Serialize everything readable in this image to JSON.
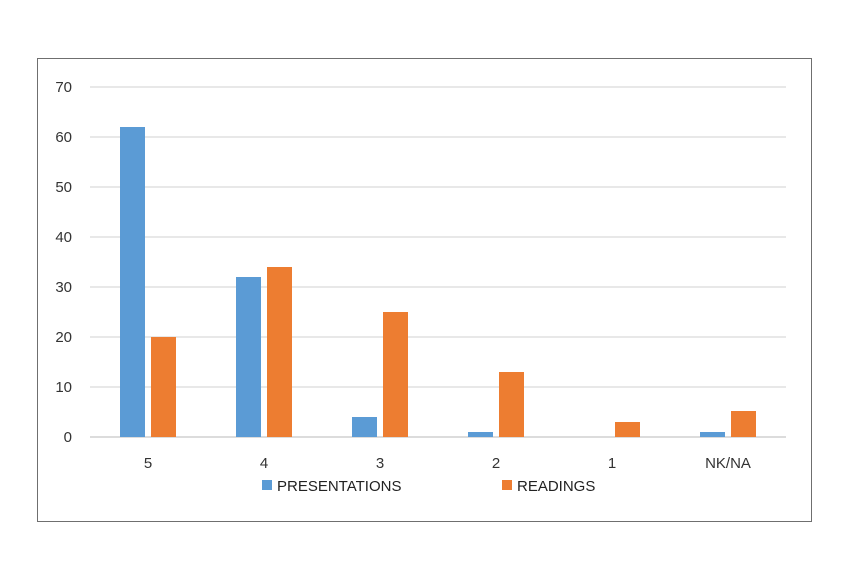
{
  "chart_data": {
    "type": "bar",
    "categories": [
      "5",
      "4",
      "3",
      "2",
      "1",
      "NK/NA"
    ],
    "series": [
      {
        "name": "PRESENTATIONS",
        "values": [
          62,
          32,
          4,
          1,
          0,
          1
        ],
        "color": "#5b9bd5"
      },
      {
        "name": "READINGS",
        "values": [
          20,
          34,
          25,
          13,
          3,
          5.2
        ],
        "color": "#ed7d31"
      }
    ],
    "title": "",
    "xlabel": "",
    "ylabel": "",
    "ylim": [
      0,
      70
    ],
    "yticks": [
      0,
      10,
      20,
      30,
      40,
      50,
      60,
      70
    ],
    "grid": true,
    "legend_position": "bottom"
  }
}
